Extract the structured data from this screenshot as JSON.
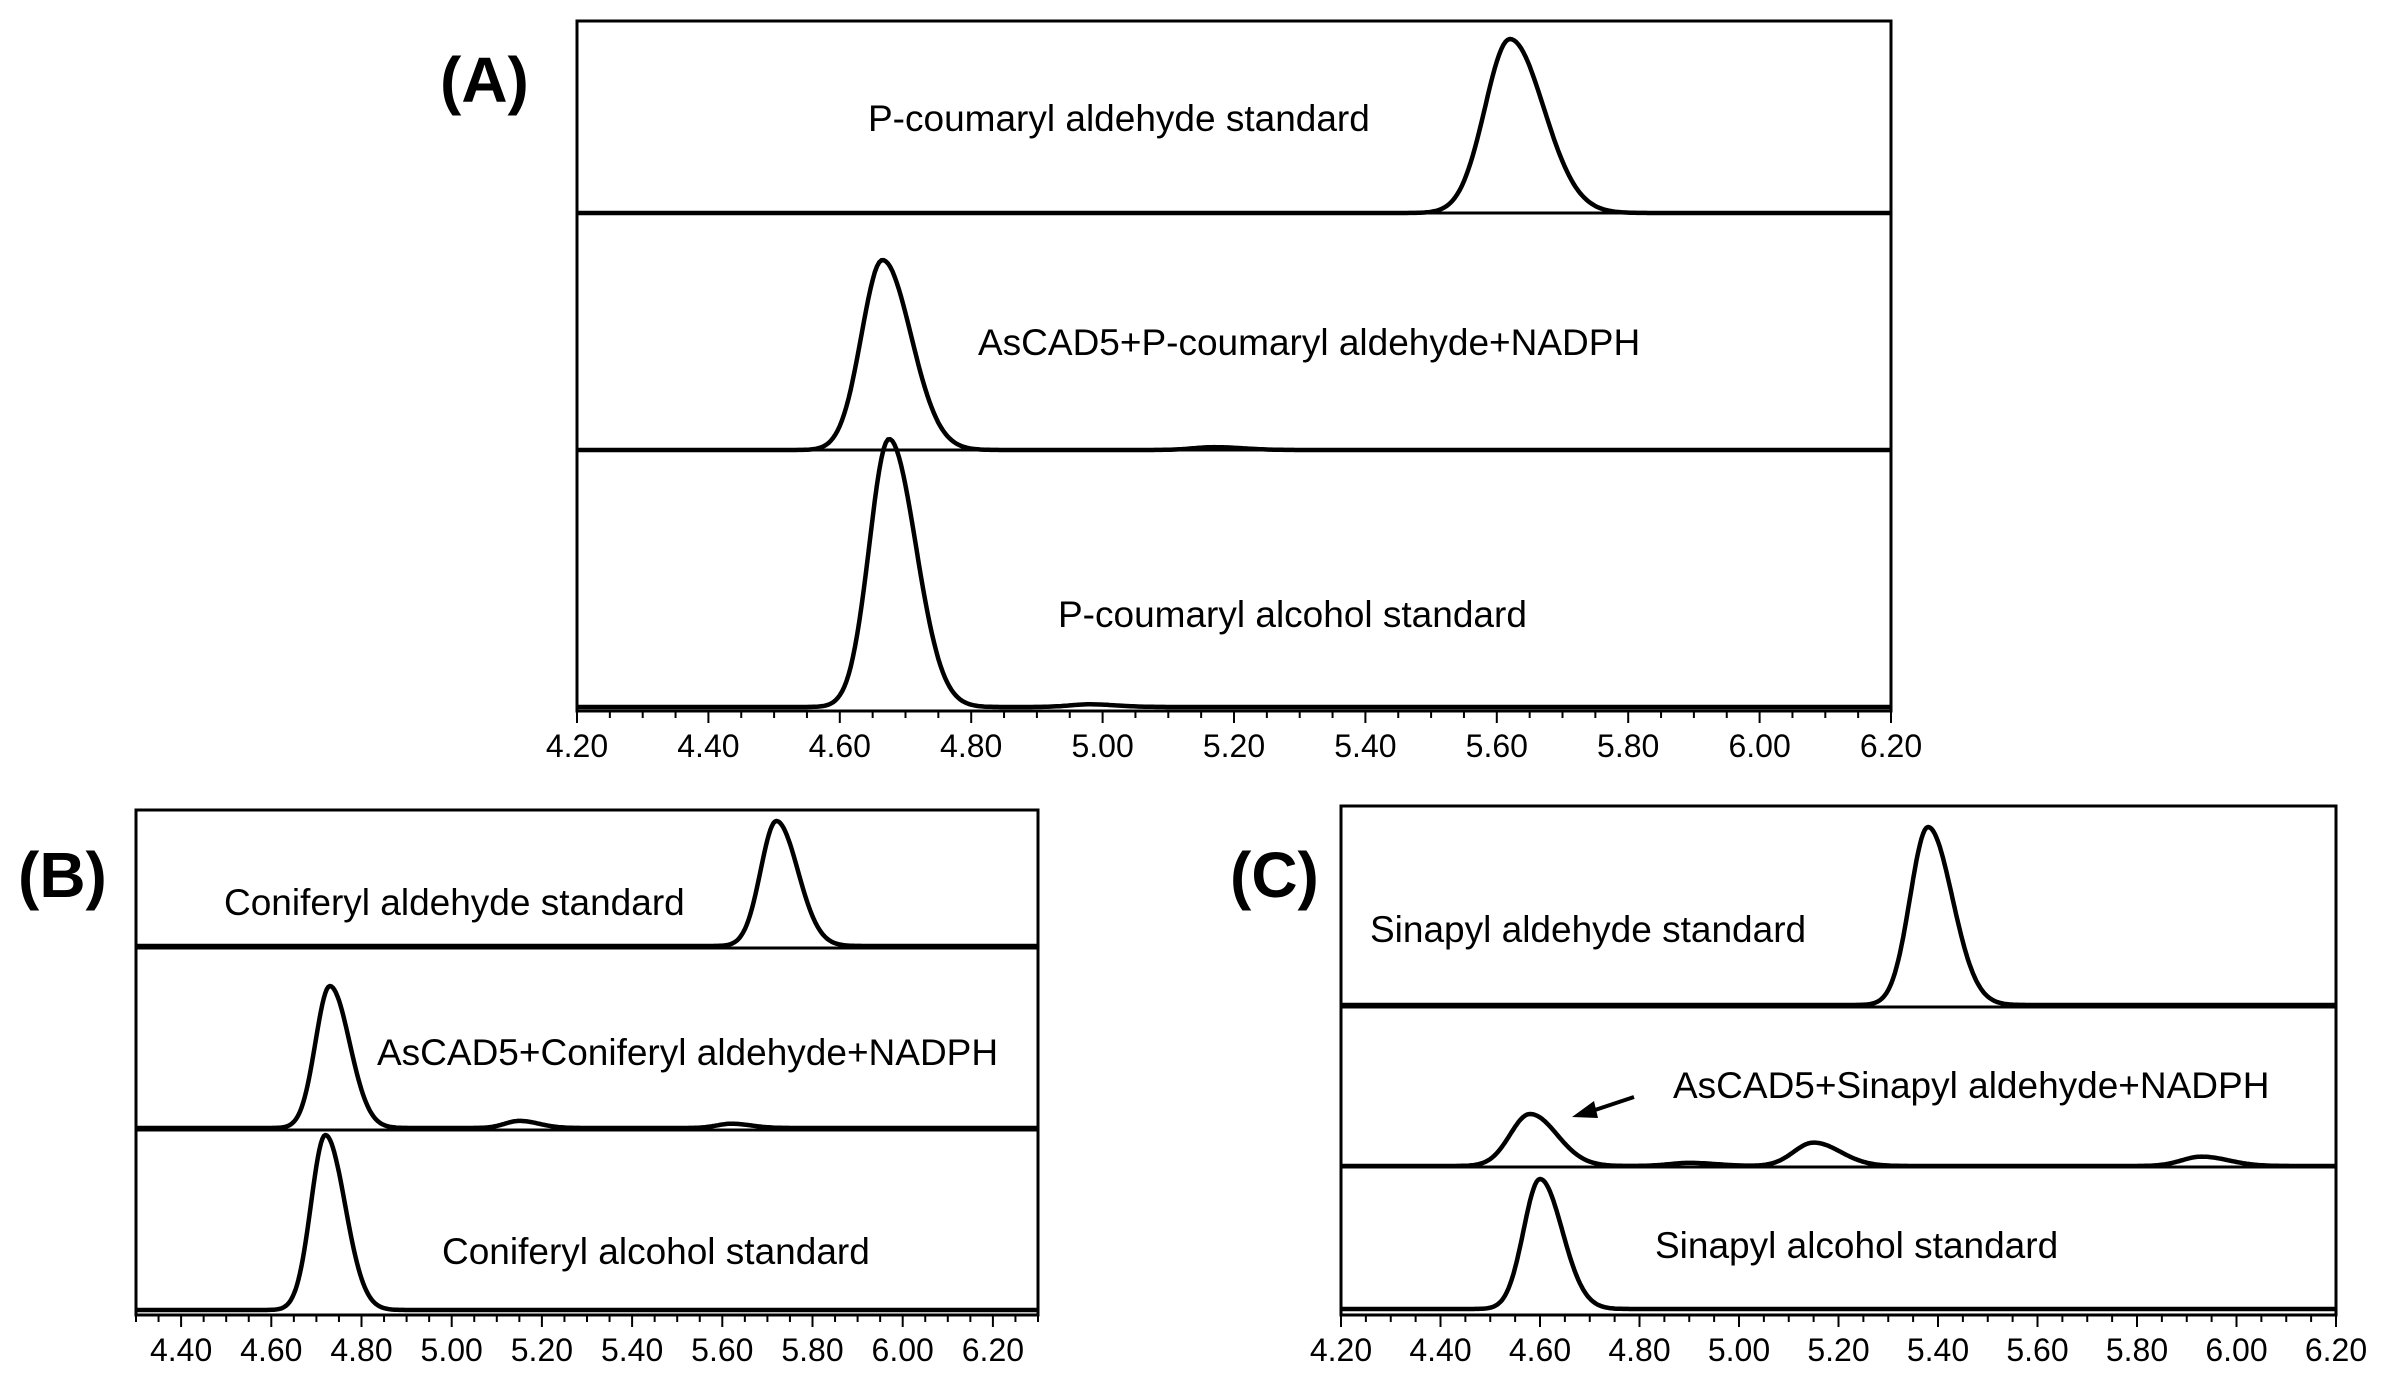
{
  "chart_data": [
    {
      "panel": "(A)",
      "type": "line",
      "x_ticks": [
        "4.20",
        "4.40",
        "4.60",
        "4.80",
        "5.00",
        "5.20",
        "5.40",
        "5.60",
        "5.80",
        "6.00",
        "6.20"
      ],
      "xlim": [
        4.2,
        6.2
      ],
      "series": [
        {
          "name": "P-coumaryl aldehyde standard",
          "peaks": [
            {
              "x": 5.62,
              "height": 1.0
            }
          ]
        },
        {
          "name": "AsCAD5+P-coumaryl aldehyde+NADPH",
          "peaks": [
            {
              "x": 4.665,
              "height": 1.0
            },
            {
              "x": 5.17,
              "height": 0.015
            }
          ]
        },
        {
          "name": "P-coumaryl alcohol standard",
          "peaks": [
            {
              "x": 4.675,
              "height": 1.0
            },
            {
              "x": 4.98,
              "height": 0.01
            }
          ]
        }
      ]
    },
    {
      "panel": "(B)",
      "type": "line",
      "x_ticks": [
        "4.40",
        "4.60",
        "4.80",
        "5.00",
        "5.20",
        "5.40",
        "5.60",
        "5.80",
        "6.00",
        "6.20"
      ],
      "xlim": [
        4.3,
        6.3
      ],
      "series": [
        {
          "name": "Coniferyl aldehyde standard",
          "peaks": [
            {
              "x": 5.72,
              "height": 1.0
            }
          ]
        },
        {
          "name": "AsCAD5+Coniferyl aldehyde+NADPH",
          "peaks": [
            {
              "x": 4.73,
              "height": 1.0
            },
            {
              "x": 5.15,
              "height": 0.05
            },
            {
              "x": 5.62,
              "height": 0.03
            }
          ]
        },
        {
          "name": "Coniferyl alcohol standard",
          "peaks": [
            {
              "x": 4.72,
              "height": 1.0
            }
          ]
        }
      ]
    },
    {
      "panel": "(C)",
      "type": "line",
      "x_ticks": [
        "4.20",
        "4.40",
        "4.60",
        "4.80",
        "5.00",
        "5.20",
        "5.40",
        "5.60",
        "5.80",
        "6.00",
        "6.20"
      ],
      "xlim": [
        4.2,
        6.2
      ],
      "series": [
        {
          "name": "Sinapyl aldehyde standard",
          "peaks": [
            {
              "x": 5.38,
              "height": 1.0
            }
          ]
        },
        {
          "name": "AsCAD5+Sinapyl aldehyde+NADPH",
          "peaks": [
            {
              "x": 4.58,
              "height": 1.0
            },
            {
              "x": 5.15,
              "height": 0.45
            },
            {
              "x": 4.9,
              "height": 0.06
            },
            {
              "x": 5.93,
              "height": 0.18
            }
          ]
        },
        {
          "name": "Sinapyl alcohol standard",
          "peaks": [
            {
              "x": 4.6,
              "height": 1.0
            }
          ]
        }
      ]
    }
  ]
}
